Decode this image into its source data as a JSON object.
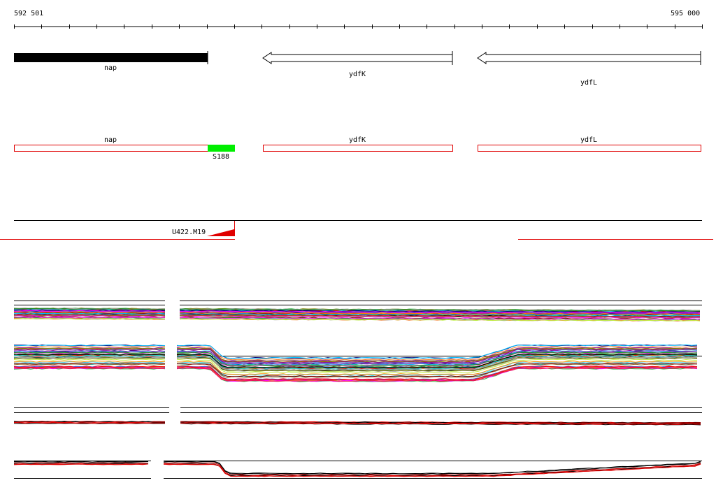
{
  "ruler": {
    "start_label": "592 501",
    "end_label": "595 000"
  },
  "genes": [
    {
      "name": "nap",
      "strand": "+",
      "style": "filled",
      "color": "#000000"
    },
    {
      "name": "ydfK",
      "strand": "-",
      "style": "arrow-outline",
      "color": "#000000"
    },
    {
      "name": "ydfL",
      "strand": "-",
      "style": "arrow-outline",
      "color": "#000000"
    }
  ],
  "features": [
    {
      "name": "nap",
      "color": "#e00000"
    },
    {
      "name": "ydfK",
      "color": "#e00000"
    },
    {
      "name": "ydfL",
      "color": "#e00000"
    },
    {
      "name": "S188",
      "color": "#00ee00"
    }
  ],
  "signal_track": {
    "label": "U422.M19",
    "color": "#e00000"
  },
  "colors": {
    "feature_outline": "#e00000",
    "highlight": "#00ee00",
    "track_line": "#000000"
  }
}
